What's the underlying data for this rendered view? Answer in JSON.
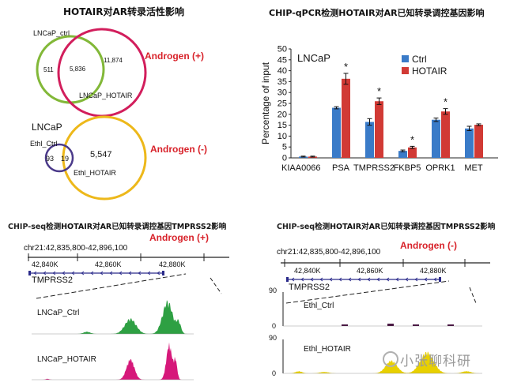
{
  "venn_panel": {
    "title": "HOTAIR对AR转录活性影响",
    "top_venn": {
      "label_a": "LNCaP_ctrl",
      "label_b": "LNCaP_HOTAIR",
      "only_a": "511",
      "overlap": "5,836",
      "only_b": "11,874",
      "condition": "Androgen (+)"
    },
    "bottom_venn": {
      "cell_line": "LNCaP",
      "label_a": "Ethl_Ctrl",
      "label_b": "Ethl_HOTAIR",
      "only_a": "93",
      "overlap": "19",
      "only_b": "5,547",
      "condition": "Androgen (-)"
    }
  },
  "bar_panel": {
    "title": "CHIP-qPCR检测HOTAIR对AR已知转录调控基因影响",
    "inset_label": "LNCaP"
  },
  "track_left": {
    "title_prefix": "CHIP-seq",
    "title_rest": "检测HOTAIR对AR已知转录调控基因TMPRSS2影响",
    "condition": "Androgen (+)",
    "locus": "chr21:42,835,800-42,896,100",
    "ticks": [
      "42,840K",
      "42,860K",
      "42,880K"
    ],
    "gene": "TMPRSS2",
    "track1": "LNCaP_Ctrl",
    "track2": "LNCaP_HOTAIR",
    "colors": {
      "track1": "#2ea043",
      "track2": "#d6187a"
    }
  },
  "track_right": {
    "title_prefix": "CHIP-seq",
    "title_rest": "检测HOTAIR对AR已知转录调控基因TMPRSS2影响",
    "condition": "Androgen (-)",
    "locus": "chr21:42,835,800-42,896,100",
    "ticks": [
      "42,840K",
      "42,860K",
      "42,880K"
    ],
    "gene": "TMPRSS2",
    "track1": "Ethl_Ctrl",
    "track2": "Ethl_HOTAIR",
    "track1_ymax": "90",
    "track1_ymin": "0",
    "track2_ymax": "90",
    "track2_ymin": "0",
    "colors": {
      "track1": "#4a1a44",
      "track2": "#e8d000"
    }
  },
  "watermark": "小张聊科研",
  "chart_data": [
    {
      "type": "bar",
      "title": "CHIP-qPCR检测HOTAIR对AR已知转录调控基因影响",
      "xlabel": "",
      "ylabel": "Percentage of input",
      "ylim": [
        0,
        50
      ],
      "yticks": [
        "0",
        "5",
        "10",
        "15",
        "20",
        "25",
        "30",
        "35",
        "40",
        "45",
        "50"
      ],
      "categories": [
        "KIAA0066",
        "PSA",
        "TMPRSS2",
        "FKBP5",
        "OPRK1",
        "MET"
      ],
      "series": [
        {
          "name": "Ctrl",
          "color": "#3a7bc8",
          "values": [
            0.6,
            23.0,
            16.5,
            3.2,
            17.5,
            13.5
          ],
          "errors": [
            0.2,
            0.5,
            1.5,
            0.4,
            0.8,
            1.0
          ]
        },
        {
          "name": "HOTAIR",
          "color": "#d13a35",
          "values": [
            0.6,
            36.3,
            26.0,
            4.8,
            21.3,
            15.2
          ],
          "errors": [
            0.2,
            2.5,
            1.5,
            0.5,
            1.3,
            0.4
          ]
        }
      ],
      "significance": [
        "",
        "*",
        "*",
        "*",
        "*",
        ""
      ],
      "legend_position": "right"
    }
  ]
}
